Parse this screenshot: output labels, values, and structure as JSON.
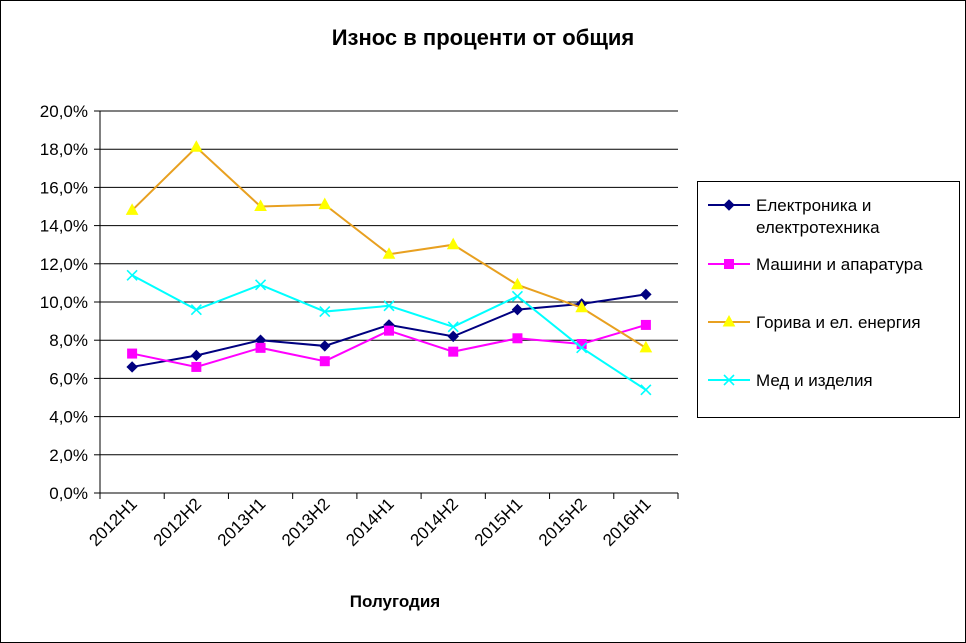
{
  "chart_data": {
    "type": "line",
    "title": "Износ в проценти от общия",
    "xlabel": "Полугодия",
    "ylabel": "",
    "categories": [
      "2012H1",
      "2012H2",
      "2013H1",
      "2013H2",
      "2014H1",
      "2014H2",
      "2015H1",
      "2015H2",
      "2016H1"
    ],
    "ylim": [
      0,
      20
    ],
    "y_ticks": [
      "0,0%",
      "2,0%",
      "4,0%",
      "6,0%",
      "8,0%",
      "10,0%",
      "12,0%",
      "14,0%",
      "16,0%",
      "18,0%",
      "20,0%"
    ],
    "grid": true,
    "legend_position": "right",
    "series": [
      {
        "name": "Електроника  и електротехника",
        "legend_lines": [
          "Електроника  и",
          "електротехника"
        ],
        "color": "#000080",
        "marker": "diamond",
        "values": [
          6.6,
          7.2,
          8.0,
          7.7,
          8.8,
          8.2,
          9.6,
          9.9,
          10.4
        ]
      },
      {
        "name": "Машини  и апаратура",
        "legend_lines": [
          "Машини  и апаратура"
        ],
        "color": "#FF00FF",
        "marker": "square",
        "values": [
          7.3,
          6.6,
          7.6,
          6.9,
          8.5,
          7.4,
          8.1,
          7.8,
          8.8
        ]
      },
      {
        "name": "Горива и ел. енергия",
        "legend_lines": [
          "Горива и ел. енергия"
        ],
        "color": "#E8A020",
        "marker": "triangle",
        "marker_fill": "#FFFF00",
        "values": [
          14.8,
          18.1,
          15.0,
          15.1,
          12.5,
          13.0,
          10.9,
          9.7,
          7.6
        ]
      },
      {
        "name": "Мед и изделия",
        "legend_lines": [
          "Мед и изделия"
        ],
        "color": "#00FFFF",
        "marker": "x",
        "values": [
          11.4,
          9.6,
          10.9,
          9.5,
          9.8,
          8.7,
          10.3,
          7.6,
          5.4
        ]
      }
    ]
  }
}
